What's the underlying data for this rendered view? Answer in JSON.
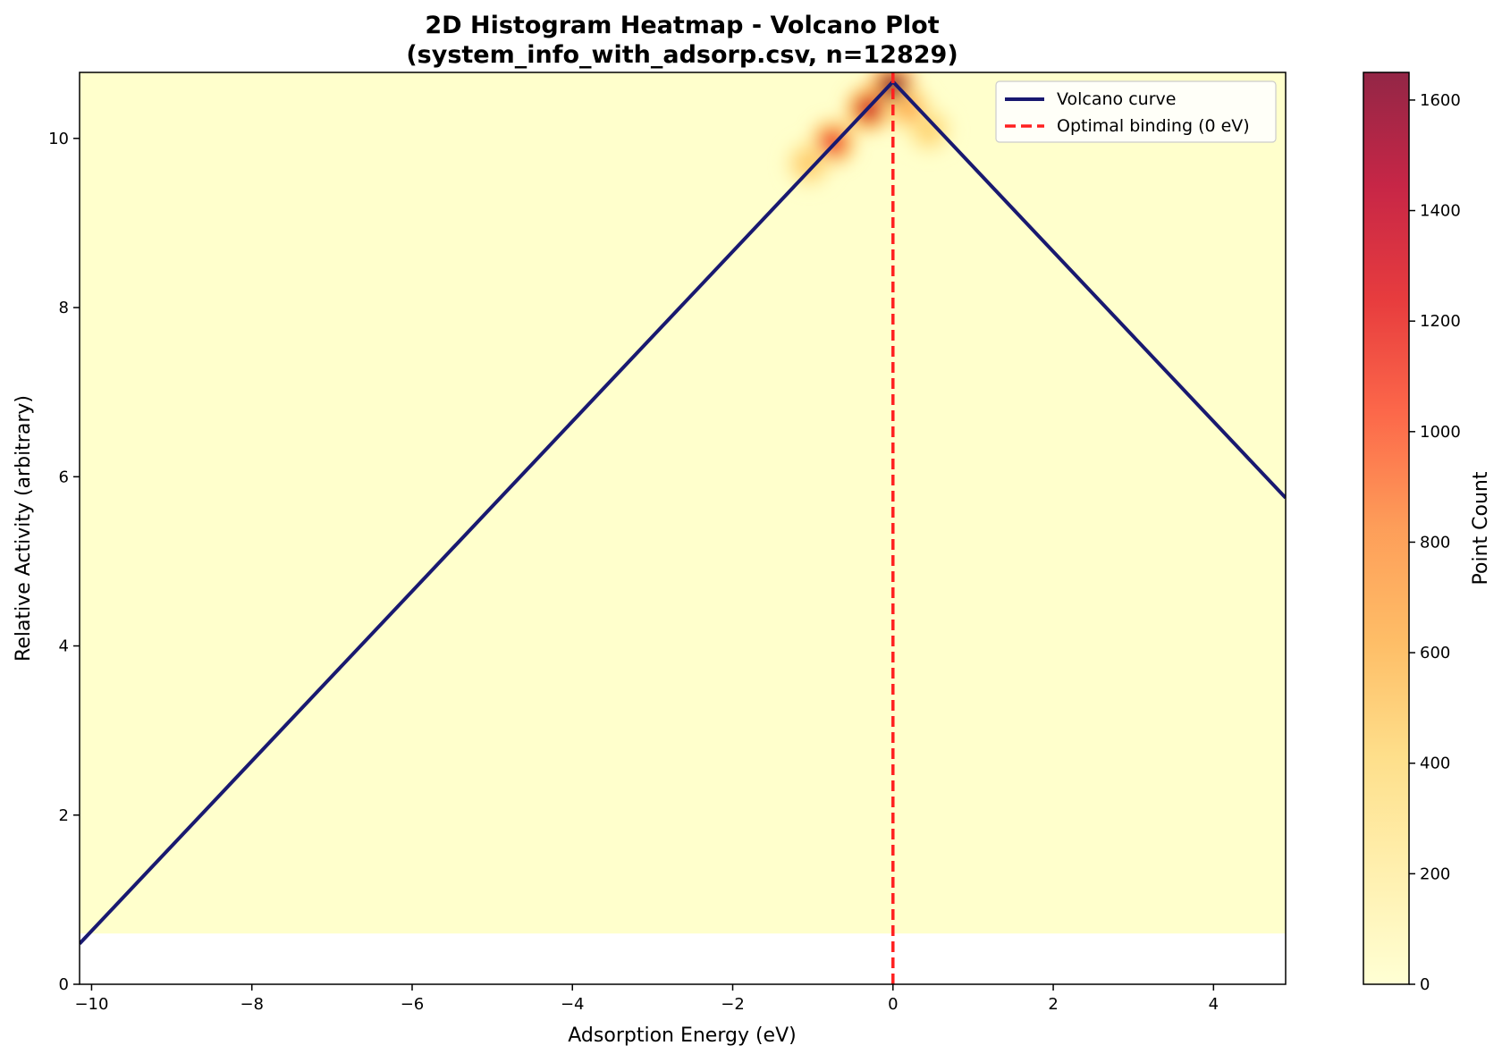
{
  "chart_data": {
    "type": "heatmap",
    "title_line1": "2D Histogram Heatmap - Volcano Plot",
    "title_line2": "(system_info_with_adsorp.csv, n=12829)",
    "xlabel": "Adsorption Energy (eV)",
    "ylabel": "Relative Activity (arbitrary)",
    "xlim": [
      -10.15,
      4.9
    ],
    "ylim": [
      0,
      10.78
    ],
    "xticks": [
      -10,
      -8,
      -6,
      -4,
      -2,
      0,
      2,
      4
    ],
    "yticks": [
      0,
      2,
      4,
      6,
      8,
      10
    ],
    "histogram_extent": {
      "x": [
        -10.15,
        4.9
      ],
      "y": [
        0.6,
        10.78
      ]
    },
    "background_count": 0,
    "hotspots": [
      {
        "x": 0.0,
        "y": 10.62,
        "count": 1650
      },
      {
        "x": -0.3,
        "y": 10.35,
        "count": 1350
      },
      {
        "x": -0.75,
        "y": 9.95,
        "count": 1150
      },
      {
        "x": 0.2,
        "y": 10.35,
        "count": 650
      },
      {
        "x": 0.45,
        "y": 10.1,
        "count": 450
      },
      {
        "x": -1.05,
        "y": 9.7,
        "count": 500
      }
    ],
    "series": [
      {
        "name": "Volcano curve",
        "style": "solid",
        "color": "#191970",
        "x": [
          -10.15,
          0.0,
          4.9
        ],
        "y": [
          0.48,
          10.67,
          5.75
        ]
      },
      {
        "name": "Optimal binding (0 eV)",
        "style": "dashed",
        "color": "#ff2020",
        "x": [
          0,
          0
        ],
        "y": [
          0,
          10.78
        ]
      }
    ],
    "legend": {
      "placement": "top-right",
      "entries": [
        "Volcano curve",
        "Optimal binding (0 eV)"
      ]
    },
    "colorbar": {
      "label": "Point Count",
      "range": [
        0,
        1650
      ],
      "ticks": [
        0,
        200,
        400,
        600,
        800,
        1000,
        1200,
        1400,
        1600
      ],
      "colormap": [
        "#ffffcc",
        "#ffeda0",
        "#fed976",
        "#feb24c",
        "#fd8d3c",
        "#fc4e2a",
        "#e31a1c",
        "#bd0026",
        "#800026"
      ]
    },
    "grid": false
  }
}
